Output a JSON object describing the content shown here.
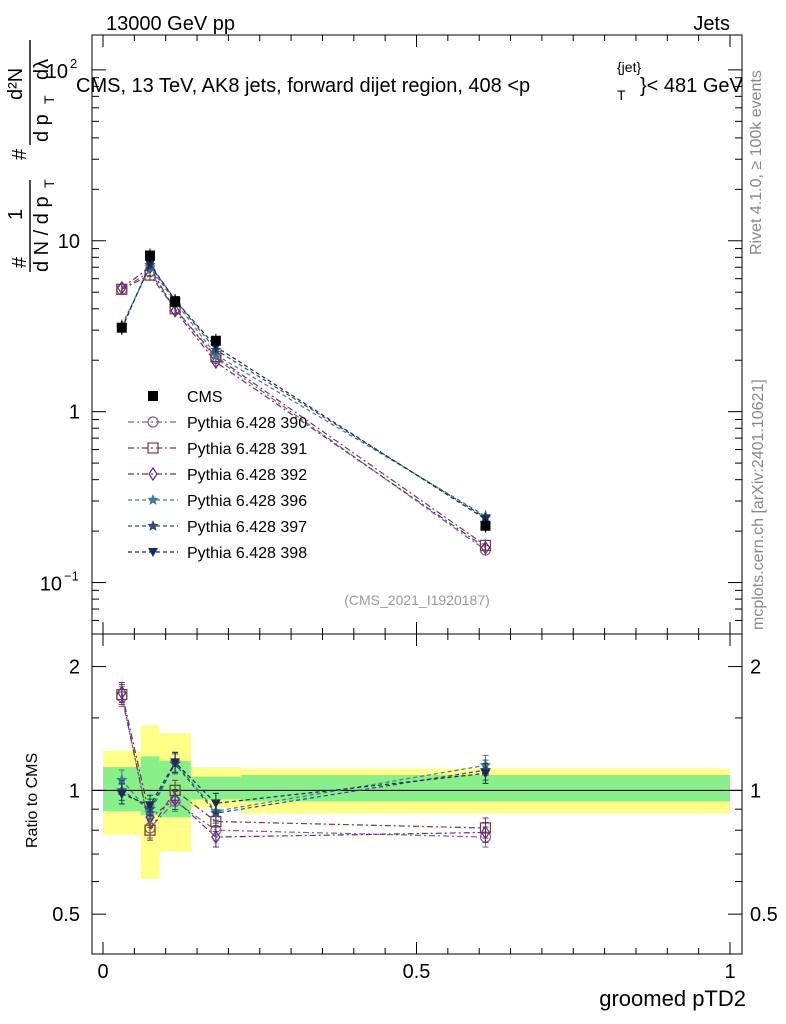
{
  "header": {
    "left": "13000 GeV pp",
    "right": "Jets"
  },
  "side_labels": {
    "rivet": "Rivet 4.1.0, ≥ 100k events",
    "mcplots": "mcplots.cern.ch [arXiv:2401.10621]"
  },
  "chart_data": {
    "type": "line",
    "title_parts": {
      "main": "CMS, 13 TeV, AK8 jets, forward dijet region, 408 <p",
      "sup": "{jet}",
      "sub": "T",
      "tail": "}< 481 GeV"
    },
    "analysis_tag": "(CMS_2021_I1920187)",
    "xlabel": "groomed pTD2",
    "x_ticks": [
      "0",
      "0.5",
      "1"
    ],
    "xlim": [
      0,
      1
    ],
    "main_panel": {
      "yscale": "log",
      "ylim": [
        0.05,
        160
      ],
      "y_ticks": [
        {
          "value": 0.1,
          "base": "10",
          "exp": "−1"
        },
        {
          "value": 1,
          "base": "1",
          "exp": ""
        },
        {
          "value": 10,
          "base": "10",
          "exp": ""
        },
        {
          "value": 100,
          "base": "10",
          "exp": "2"
        }
      ],
      "ylabel": {
        "hash": "#",
        "num1": "1",
        "den1": "d N / d p",
        "den1_sub": "T",
        "hash2": "#",
        "num2": "d²N",
        "den2": "d p",
        "den2_sub": "T",
        "den2_tail": "dλ"
      }
    },
    "ratio_panel": {
      "ylabel": "Ratio to CMS",
      "ylim": [
        0.4,
        2.4
      ],
      "yscale": "log",
      "y_ticks": [
        "0.5",
        "1",
        "2"
      ],
      "y_tick_values": [
        0.5,
        1,
        2
      ],
      "bands": [
        {
          "x0": 0.0,
          "x1": 0.06,
          "green": [
            0.89,
            1.14
          ],
          "yellow": [
            0.78,
            1.25
          ]
        },
        {
          "x0": 0.06,
          "x1": 0.09,
          "green": [
            0.87,
            1.21
          ],
          "yellow": [
            0.61,
            1.44
          ]
        },
        {
          "x0": 0.09,
          "x1": 0.14,
          "green": [
            0.86,
            1.18
          ],
          "yellow": [
            0.71,
            1.38
          ]
        },
        {
          "x0": 0.14,
          "x1": 0.22,
          "green": [
            0.95,
            1.08
          ],
          "yellow": [
            0.91,
            1.14
          ]
        },
        {
          "x0": 0.22,
          "x1": 1.0,
          "green": [
            0.94,
            1.09
          ],
          "yellow": [
            0.88,
            1.13
          ]
        }
      ]
    },
    "x": [
      0.03,
      0.075,
      0.115,
      0.18,
      0.61
    ],
    "data": {
      "name": "CMS",
      "values": [
        3.1,
        8.2,
        4.4,
        2.6,
        0.215
      ],
      "color": "#000000"
    },
    "series": [
      {
        "name": "Pythia 6.428 390",
        "marker": "circle",
        "dash": "6,3,2,3",
        "color": "#8a5a8e",
        "values": [
          5.2,
          6.6,
          4.0,
          2.05,
          0.155
        ],
        "ratio": [
          1.69,
          0.81,
          0.94,
          0.8,
          0.77
        ]
      },
      {
        "name": "Pythia 6.428 391",
        "marker": "square",
        "dash": "6,3,2,3",
        "color": "#7a3b3b",
        "values": [
          5.2,
          6.3,
          4.0,
          2.1,
          0.165
        ],
        "ratio": [
          1.71,
          0.8,
          1.0,
          0.84,
          0.81
        ]
      },
      {
        "name": "Pythia 6.428 392",
        "marker": "diamond",
        "dash": "6,3,2,3",
        "color": "#5b2f8a",
        "values": [
          5.3,
          7.0,
          3.9,
          1.95,
          0.16
        ],
        "ratio": [
          1.73,
          0.86,
          0.95,
          0.77,
          0.79
        ]
      },
      {
        "name": "Pythia 6.428 396",
        "marker": "star",
        "dash": "4,3",
        "color": "#3f7d8c",
        "values": [
          3.2,
          7.0,
          4.4,
          2.15,
          0.245
        ],
        "ratio": [
          1.06,
          0.88,
          1.17,
          0.89,
          1.15
        ]
      },
      {
        "name": "Pythia 6.428 397",
        "marker": "star",
        "dash": "4,3",
        "color": "#2e4f7a",
        "values": [
          3.1,
          7.2,
          4.5,
          2.3,
          0.24
        ],
        "ratio": [
          1.0,
          0.9,
          1.16,
          0.88,
          1.12
        ]
      },
      {
        "name": "Pythia 6.428 398",
        "marker": "triangle-down",
        "dash": "4,3",
        "color": "#1e2a55",
        "values": [
          3.05,
          7.3,
          4.5,
          2.4,
          0.235
        ],
        "ratio": [
          0.98,
          0.92,
          1.17,
          0.93,
          1.1
        ]
      }
    ]
  }
}
